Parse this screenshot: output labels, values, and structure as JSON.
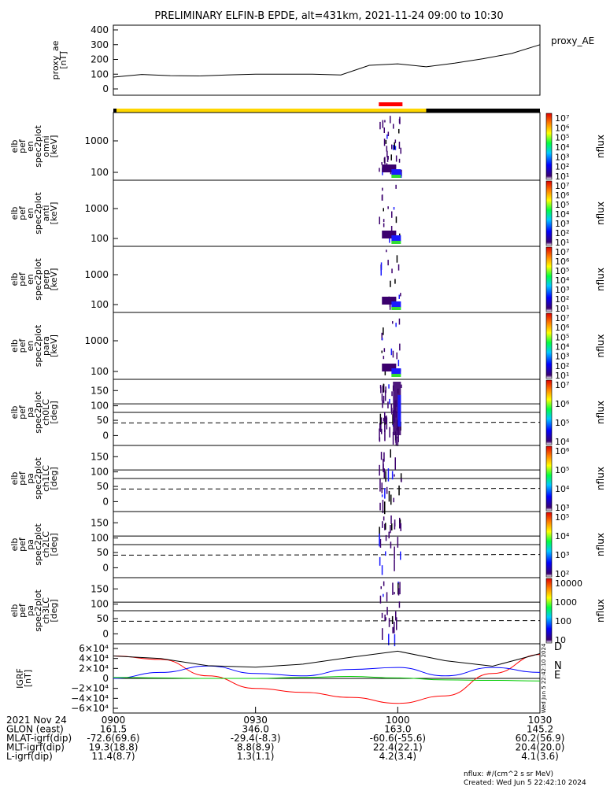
{
  "title": "PRELIMINARY ELFIN-B EPDE, alt=431km, 2021-11-24 09:00 to 10:30",
  "colors": {
    "orbit_bar_yellow": "#ffd700",
    "orbit_bar_black": "#000000",
    "science_zone_red": "#ff0000",
    "spec_purple": "#3b006e",
    "spec_blue": "#1a1aff",
    "spec_green": "#33dd33",
    "igrf_D": "#ff0000",
    "igrf_N": "#0000ff",
    "igrf_E": "#00cc00"
  },
  "panels": [
    {
      "id": "proxy_ae",
      "ylabel": [
        "proxy_ae",
        "[nT]"
      ],
      "right_label": "proxy_AE",
      "yticks": [
        "400",
        "300",
        "200",
        "100",
        "0"
      ]
    },
    {
      "id": "pef_en_omni",
      "ylabel": [
        "elb",
        "pef",
        "en",
        "spec2plot",
        "omni",
        "[keV]"
      ],
      "yticks": [
        "1000",
        "100"
      ],
      "cb_ticks": [
        "10⁷",
        "10⁶",
        "10⁵",
        "10⁴",
        "10³",
        "10²",
        "10¹"
      ],
      "cb_label": "nflux"
    },
    {
      "id": "pef_en_anti",
      "ylabel": [
        "elb",
        "pef",
        "en",
        "spec2plot",
        "anti",
        "[keV]"
      ],
      "yticks": [
        "1000",
        "100"
      ],
      "cb_ticks": [
        "10⁷",
        "10⁶",
        "10⁵",
        "10⁴",
        "10³",
        "10²",
        "10¹"
      ],
      "cb_label": "nflux"
    },
    {
      "id": "pef_en_perp",
      "ylabel": [
        "elb",
        "pef",
        "en",
        "spec2plot",
        "perp",
        "[keV]"
      ],
      "yticks": [
        "1000",
        "100"
      ],
      "cb_ticks": [
        "10⁷",
        "10⁶",
        "10⁵",
        "10⁴",
        "10³",
        "10²",
        "10¹"
      ],
      "cb_label": "nflux"
    },
    {
      "id": "pef_en_para",
      "ylabel": [
        "elb",
        "pef",
        "en",
        "spec2plot",
        "para",
        "[keV]"
      ],
      "yticks": [
        "1000",
        "100"
      ],
      "cb_ticks": [
        "10⁷",
        "10⁶",
        "10⁵",
        "10⁴",
        "10³",
        "10²",
        "10¹"
      ],
      "cb_label": "nflux"
    },
    {
      "id": "pef_pa_ch0",
      "ylabel": [
        "elb",
        "pef",
        "pa",
        "spec2plot",
        "ch0LC",
        "[deg]"
      ],
      "yticks": [
        "150",
        "100",
        "50",
        "0"
      ],
      "cb_ticks": [
        "10⁷",
        "10⁶",
        "10⁵",
        "10⁴"
      ],
      "cb_label": "nflux"
    },
    {
      "id": "pef_pa_ch1",
      "ylabel": [
        "elb",
        "pef",
        "pa",
        "spec2plot",
        "ch1LC",
        "[deg]"
      ],
      "yticks": [
        "150",
        "100",
        "50",
        "0"
      ],
      "cb_ticks": [
        "10⁶",
        "10⁵",
        "10⁴",
        "10³"
      ],
      "cb_label": "nflux"
    },
    {
      "id": "pef_pa_ch2",
      "ylabel": [
        "elb",
        "pef",
        "pa",
        "spec2plot",
        "ch2LC",
        "[deg]"
      ],
      "yticks": [
        "150",
        "100",
        "50",
        "0"
      ],
      "cb_ticks": [
        "10⁵",
        "10⁴",
        "10³",
        "10²"
      ],
      "cb_label": "nflux"
    },
    {
      "id": "pef_pa_ch3",
      "ylabel": [
        "elb",
        "pef",
        "pa",
        "spec2plot",
        "ch3LC",
        "[deg]"
      ],
      "yticks": [
        "150",
        "100",
        "50",
        "0"
      ],
      "cb_ticks": [
        "10000",
        "1000",
        "100",
        "10"
      ],
      "cb_label": "nflux"
    },
    {
      "id": "igrf",
      "ylabel": [
        "IGRF",
        "[nT]"
      ],
      "yticks": [
        "6×10⁴",
        "4×10⁴",
        "2×10⁴",
        "0",
        "−2×10⁴",
        "−4×10⁴",
        "−6×10⁴"
      ],
      "component_labels": [
        "D",
        "N",
        "E"
      ],
      "stamp": "Wed Jun  5 22:42:10 2024"
    }
  ],
  "footer": {
    "rows": [
      [
        "2021 Nov 24",
        "0900",
        "0930",
        "1000",
        "1030"
      ],
      [
        "GLON (east)",
        "161.5",
        "346.0",
        "163.0",
        "145.2"
      ],
      [
        "MLAT-igrf(dip)",
        "-72.6(69.6)",
        "-29.4(-8.3)",
        "-60.6(-55.6)",
        "60.2(56.9)"
      ],
      [
        "MLT-igrf(dip)",
        "19.3(18.8)",
        "8.8(8.9)",
        "22.4(22.1)",
        "20.4(20.0)"
      ],
      [
        "L-igrf(dip)",
        "11.4(8.7)",
        "1.3(1.1)",
        "4.2(3.4)",
        "4.1(3.6)"
      ]
    ],
    "units_note": "nflux: #/(cm^2 s sr MeV)",
    "created": "Created: Wed Jun  5 22:42:10 2024"
  },
  "chart_data": [
    {
      "type": "line",
      "title": "proxy_AE",
      "ylabel": "proxy_ae [nT]",
      "ylim": [
        0,
        400
      ],
      "x": [
        "09:00",
        "09:06",
        "09:12",
        "09:18",
        "09:24",
        "09:30",
        "09:36",
        "09:42",
        "09:48",
        "09:54",
        "10:00",
        "10:06",
        "10:12",
        "10:18",
        "10:24",
        "10:30"
      ],
      "series": [
        {
          "name": "proxy_AE",
          "values": [
            80,
            98,
            90,
            88,
            95,
            100,
            100,
            100,
            95,
            160,
            170,
            150,
            175,
            205,
            240,
            300
          ]
        }
      ]
    },
    {
      "type": "heatmap",
      "title": "elb pef en spec2plot omni",
      "ylabel": "[keV]",
      "yscale": "log",
      "active_interval": [
        "09:56",
        "10:01"
      ],
      "zlabel": "nflux",
      "zlim": [
        10,
        10000000
      ]
    },
    {
      "type": "heatmap",
      "title": "elb pef en spec2plot anti",
      "ylabel": "[keV]",
      "yscale": "log",
      "active_interval": [
        "09:56",
        "10:01"
      ],
      "zlabel": "nflux",
      "zlim": [
        10,
        10000000
      ]
    },
    {
      "type": "heatmap",
      "title": "elb pef en spec2plot perp",
      "ylabel": "[keV]",
      "yscale": "log",
      "active_interval": [
        "09:56",
        "10:01"
      ],
      "zlabel": "nflux",
      "zlim": [
        10,
        10000000
      ]
    },
    {
      "type": "heatmap",
      "title": "elb pef en spec2plot para",
      "ylabel": "[keV]",
      "yscale": "log",
      "active_interval": [
        "09:56",
        "10:01"
      ],
      "zlabel": "nflux",
      "zlim": [
        10,
        10000000
      ]
    },
    {
      "type": "heatmap",
      "title": "elb pef pa spec2plot ch0LC",
      "ylabel": "[deg]",
      "ylim": [
        0,
        180
      ],
      "active_interval": [
        "09:56",
        "10:01"
      ],
      "zlabel": "nflux"
    },
    {
      "type": "heatmap",
      "title": "elb pef pa spec2plot ch1LC",
      "ylabel": "[deg]",
      "ylim": [
        0,
        180
      ],
      "active_interval": [
        "09:56",
        "10:01"
      ],
      "zlabel": "nflux"
    },
    {
      "type": "heatmap",
      "title": "elb pef pa spec2plot ch2LC",
      "ylabel": "[deg]",
      "ylim": [
        0,
        180
      ],
      "active_interval": [
        "09:56",
        "10:01"
      ],
      "zlabel": "nflux"
    },
    {
      "type": "heatmap",
      "title": "elb pef pa spec2plot ch3LC",
      "ylabel": "[deg]",
      "ylim": [
        0,
        180
      ],
      "active_interval": [
        "09:56",
        "10:01"
      ],
      "zlabel": "nflux"
    },
    {
      "type": "line",
      "title": "IGRF",
      "ylabel": "[nT]",
      "ylim": [
        -60000,
        60000
      ],
      "x": [
        "09:00",
        "09:10",
        "09:20",
        "09:30",
        "09:40",
        "09:50",
        "10:00",
        "10:10",
        "10:20",
        "10:30"
      ],
      "series": [
        {
          "name": "D",
          "values": [
            45000,
            38000,
            5000,
            -20000,
            -28000,
            -38000,
            -50000,
            -35000,
            10000,
            48000
          ]
        },
        {
          "name": "N",
          "values": [
            0,
            12000,
            25000,
            10000,
            5000,
            18000,
            22000,
            5000,
            22000,
            12000
          ]
        },
        {
          "name": "E",
          "values": [
            2000,
            1000,
            0,
            0,
            2000,
            4000,
            1000,
            -3000,
            -4000,
            -5000
          ]
        }
      ]
    }
  ]
}
